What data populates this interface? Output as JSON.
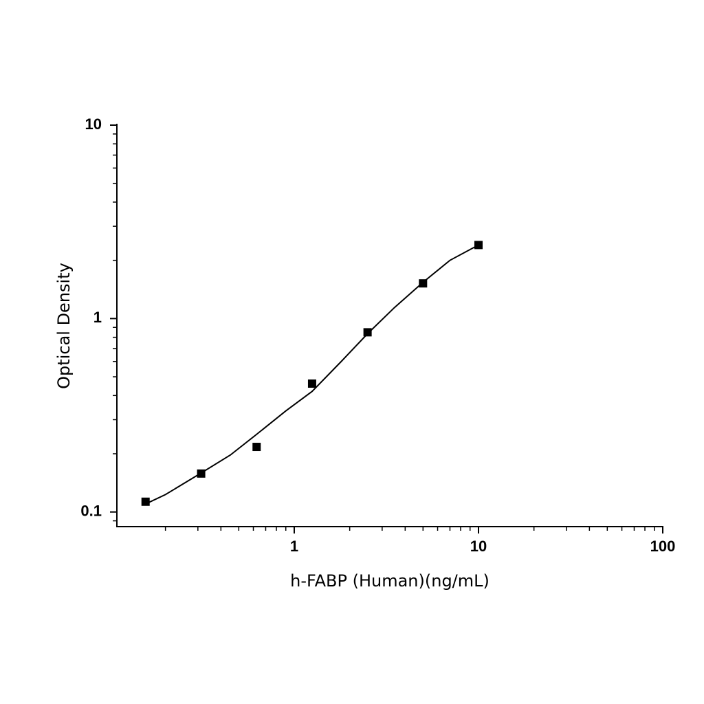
{
  "chart_data": {
    "type": "scatter",
    "x_label": "h-FABP (Human)(ng/mL)",
    "y_label": "Optical Density",
    "x_log": true,
    "y_log": true,
    "xlim": [
      0.109,
      100
    ],
    "ylim": [
      0.084,
      10
    ],
    "xticks": [
      1,
      10,
      100
    ],
    "yticks": [
      0.1,
      1,
      10
    ],
    "xminorticks": [
      0.2,
      0.3,
      0.4,
      0.5,
      0.6,
      0.7,
      0.8,
      0.9,
      2,
      3,
      4,
      5,
      6,
      7,
      8,
      9,
      20,
      30,
      40,
      50,
      60,
      70,
      80,
      90
    ],
    "yminorticks": [
      0.09,
      0.2,
      0.3,
      0.4,
      0.5,
      0.6,
      0.7,
      0.8,
      0.9,
      2,
      3,
      4,
      5,
      6,
      7,
      8,
      9
    ],
    "series": [
      {
        "color": "#000000",
        "marker": "square",
        "x": [
          0.156,
          0.3125,
          0.625,
          1.25,
          2.5,
          5,
          10
        ],
        "values": [
          0.113,
          0.158,
          0.217,
          0.461,
          0.849,
          1.52,
          2.4
        ]
      },
      {
        "color": "#000000",
        "marker": "line",
        "x": [
          0.156,
          0.2,
          0.3125,
          0.45,
          0.625,
          0.9,
          1.25,
          1.8,
          2.5,
          3.5,
          5,
          7,
          10
        ],
        "values": [
          0.11,
          0.123,
          0.159,
          0.197,
          0.252,
          0.333,
          0.42,
          0.6,
          0.835,
          1.14,
          1.54,
          2.0,
          2.4
        ]
      }
    ]
  }
}
